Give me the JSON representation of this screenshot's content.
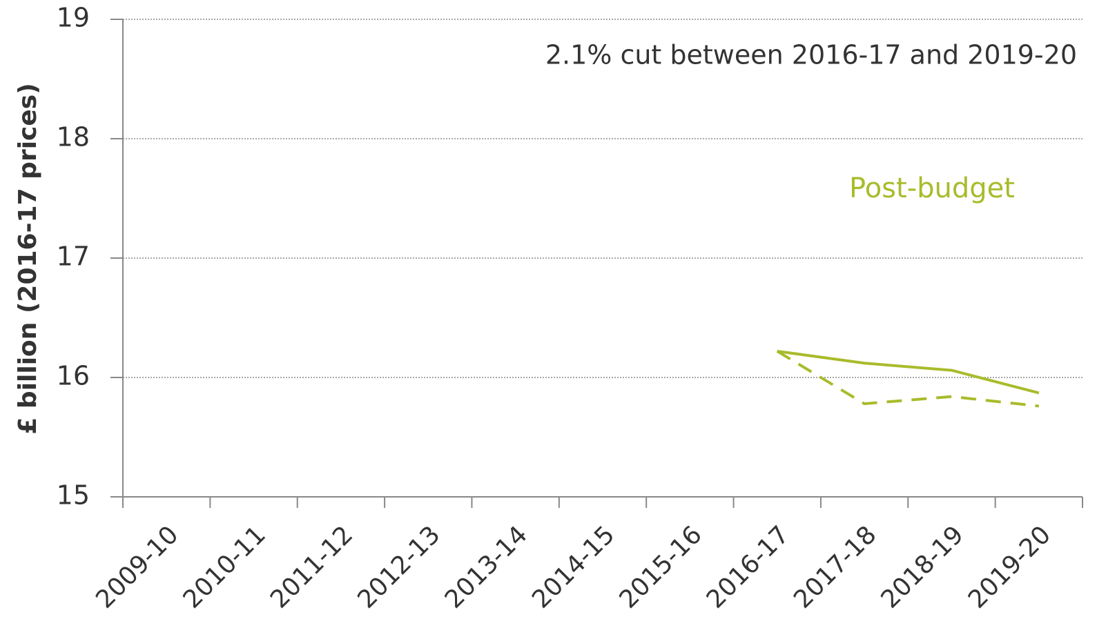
{
  "chart_data": {
    "type": "line",
    "y_label": "£ billion (2016-17 prices)",
    "annotation": "2.1% cut between 2016-17 and 2019-20",
    "categories": [
      "2009-10",
      "2010-11",
      "2011-12",
      "2012-13",
      "2013-14",
      "2014-15",
      "2015-16",
      "2016-17",
      "2017-18",
      "2018-19",
      "2019-20"
    ],
    "series": [
      {
        "name": "Post-budget",
        "color": "#a9bb2b",
        "dashed": false,
        "values": [
          null,
          null,
          null,
          null,
          null,
          null,
          null,
          16.22,
          16.12,
          16.06,
          15.87
        ]
      },
      {
        "color": "#a9bb2b",
        "dashed": true,
        "values": [
          null,
          null,
          null,
          null,
          null,
          null,
          null,
          16.22,
          15.78,
          15.84,
          15.76
        ]
      }
    ],
    "ylim": [
      15,
      19
    ],
    "yticks": [
      15,
      16,
      17,
      18,
      19
    ],
    "grid": true
  }
}
